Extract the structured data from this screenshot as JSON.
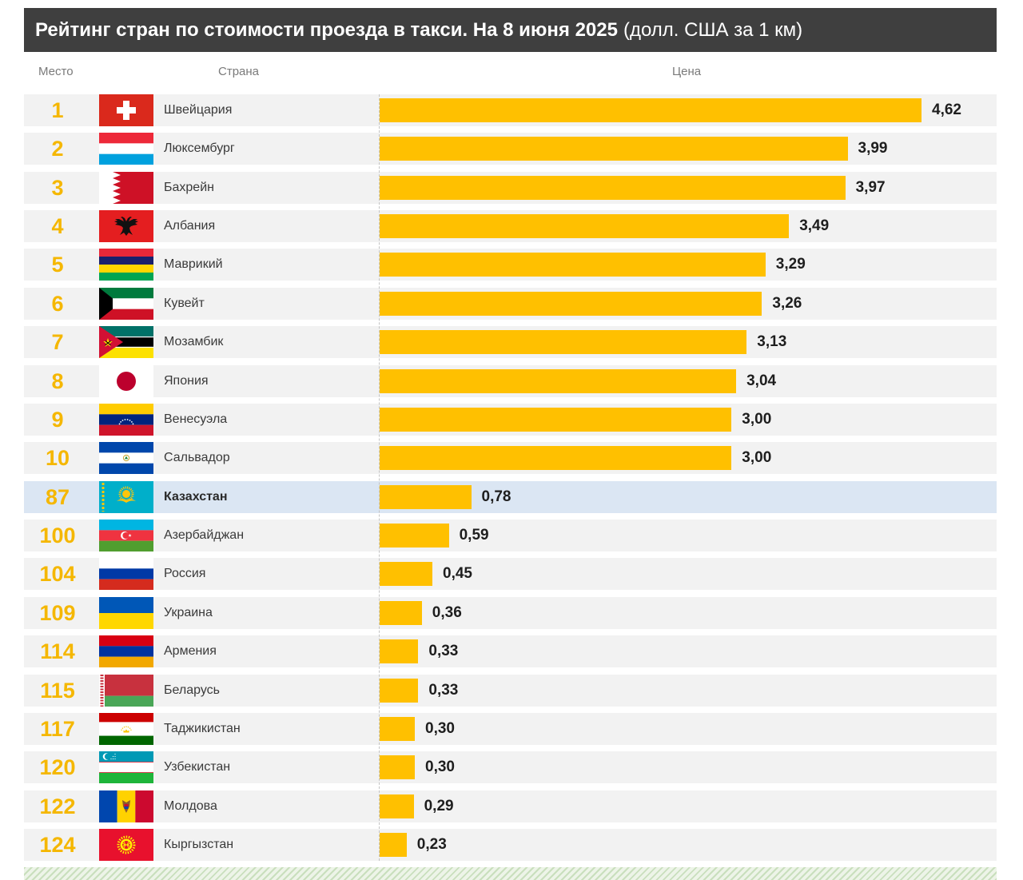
{
  "chart_data": {
    "type": "bar",
    "orientation": "horizontal",
    "title": "Рейтинг стран по стоимости проезда в такси. На 8 июня 2025",
    "title_unit": "(долл. США за 1 км)",
    "column_labels": {
      "rank": "Место",
      "country": "Страна",
      "price": "Цена"
    },
    "ranks": [
      "1",
      "2",
      "3",
      "4",
      "5",
      "6",
      "7",
      "8",
      "9",
      "10",
      "87",
      "100",
      "104",
      "109",
      "114",
      "115",
      "117",
      "120",
      "122",
      "124"
    ],
    "categories": [
      "Швейцария",
      "Люксембург",
      "Бахрейн",
      "Албания",
      "Маврикий",
      "Кувейт",
      "Мозамбик",
      "Япония",
      "Венесуэла",
      "Сальвадор",
      "Казахстан",
      "Азербайджан",
      "Россия",
      "Украина",
      "Армения",
      "Беларусь",
      "Таджикистан",
      "Узбекистан",
      "Молдова",
      "Кыргызстан"
    ],
    "values": [
      4.62,
      3.99,
      3.97,
      3.49,
      3.29,
      3.26,
      3.13,
      3.04,
      3.0,
      3.0,
      0.78,
      0.59,
      0.45,
      0.36,
      0.33,
      0.33,
      0.3,
      0.3,
      0.29,
      0.23
    ],
    "flags": [
      "switzerland-flag-icon",
      "luxembourg-flag-icon",
      "bahrain-flag-icon",
      "albania-flag-icon",
      "mauritius-flag-icon",
      "kuwait-flag-icon",
      "mozambique-flag-icon",
      "japan-flag-icon",
      "venezuela-flag-icon",
      "el-salvador-flag-icon",
      "kazakhstan-flag-icon",
      "azerbaijan-flag-icon",
      "russia-flag-icon",
      "ukraine-flag-icon",
      "armenia-flag-icon",
      "belarus-flag-icon",
      "tajikistan-flag-icon",
      "uzbekistan-flag-icon",
      "moldova-flag-icon",
      "kyrgyzstan-flag-icon"
    ],
    "highlighted_index": 10,
    "grid": false,
    "legend": false,
    "value_labels": true
  },
  "colors": {
    "bar": "#ffc000",
    "rank_text": "#f5b700",
    "header_background": "#3f3f3f",
    "row_background": "#f2f2f2",
    "highlight_row": "#dbe6f3"
  }
}
